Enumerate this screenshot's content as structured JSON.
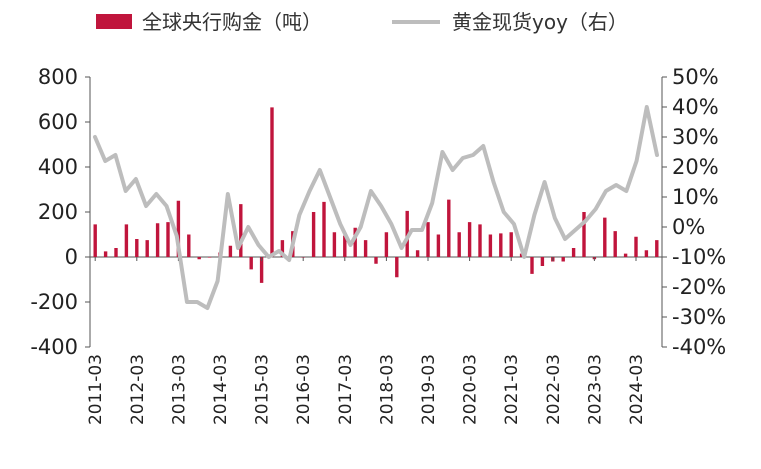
{
  "chart_data": {
    "type": "bar+line",
    "legend": {
      "placement": "top",
      "items": [
        {
          "label": "全球央行购金（吨）",
          "kind": "bar",
          "color": "#C0153C"
        },
        {
          "label": "黄金现货yoy（右）",
          "kind": "line",
          "color": "#BDBDBD"
        }
      ]
    },
    "y_left": {
      "min": -400,
      "max": 800,
      "ticks": [
        "800",
        "600",
        "400",
        "200",
        "0",
        "-200",
        "-400"
      ],
      "tick_values": [
        800,
        600,
        400,
        200,
        0,
        -200,
        -400
      ]
    },
    "y_right": {
      "min": -40,
      "max": 50,
      "ticks": [
        "50%",
        "40%",
        "30%",
        "20%",
        "10%",
        "0%",
        "-10%",
        "-20%",
        "-30%",
        "-40%"
      ],
      "tick_values": [
        50,
        40,
        30,
        20,
        10,
        0,
        -10,
        -20,
        -30,
        -40
      ]
    },
    "x_labels": [
      "2011-03",
      "2012-03",
      "2013-03",
      "2014-03",
      "2015-03",
      "2016-03",
      "2017-03",
      "2018-03",
      "2019-03",
      "2020-03",
      "2021-03",
      "2022-03",
      "2023-03",
      "2024-03"
    ],
    "grid": false,
    "bar_series": {
      "name": "全球央行购金（吨）",
      "color": "#C0153C",
      "values": [
        145,
        25,
        40,
        145,
        80,
        75,
        150,
        155,
        250,
        100,
        -10,
        0,
        20,
        50,
        235,
        -55,
        -115,
        665,
        75,
        115,
        0,
        200,
        245,
        110,
        95,
        130,
        75,
        -30,
        110,
        -90,
        205,
        30,
        155,
        100,
        255,
        110,
        155,
        145,
        100,
        105,
        110,
        15,
        -75,
        -40,
        -20,
        -20,
        40,
        200,
        -10,
        175,
        115,
        15,
        90,
        30,
        75
      ]
    },
    "line_series": {
      "name": "黄金现货yoy（右）",
      "color": "#BDBDBD",
      "values": [
        30,
        22,
        24,
        12,
        16,
        7,
        11,
        7,
        -3,
        -25,
        -25,
        -27,
        -18,
        11,
        -7,
        0,
        -6,
        -10,
        -8,
        -11,
        4,
        12,
        19,
        10,
        1,
        -6,
        0,
        12,
        7,
        1,
        -7,
        -1,
        -1,
        8,
        25,
        19,
        23,
        24,
        27,
        15,
        5,
        1,
        -10,
        4,
        15,
        3,
        -4,
        -1,
        2,
        6,
        12,
        14,
        12,
        22,
        40,
        24
      ]
    }
  }
}
